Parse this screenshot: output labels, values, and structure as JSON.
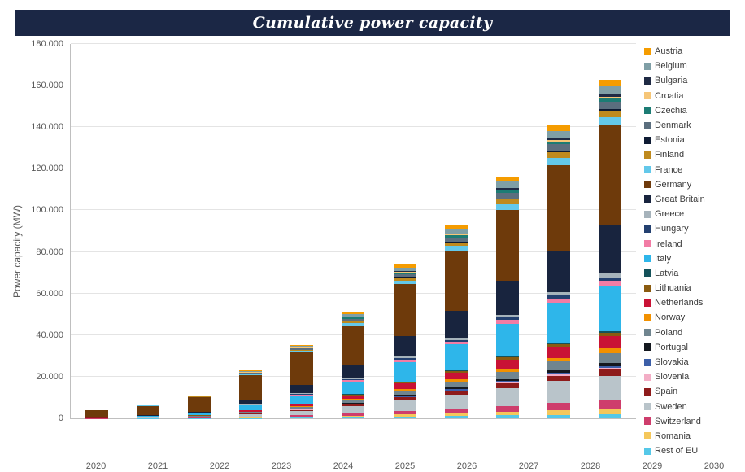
{
  "title": "Cumulative power capacity",
  "chart_data": {
    "type": "bar",
    "stacked": true,
    "title": "Cumulative power capacity",
    "xlabel": "",
    "ylabel": "Power capacity (MW)",
    "ylim": [
      0,
      180000
    ],
    "grid": true,
    "legend_position": "right",
    "categories": [
      "2020",
      "2021",
      "2022",
      "2023",
      "2024",
      "2025",
      "2026",
      "2027",
      "2028",
      "2029",
      "2030"
    ],
    "y_ticks": [
      {
        "label": "0",
        "value": 0
      },
      {
        "label": "20.000",
        "value": 20000
      },
      {
        "label": "40.000",
        "value": 40000
      },
      {
        "label": "60.000",
        "value": 60000
      },
      {
        "label": "80.000",
        "value": 80000
      },
      {
        "label": "100.000",
        "value": 100000
      },
      {
        "label": "120.000",
        "value": 120000
      },
      {
        "label": "140.000",
        "value": 140000
      },
      {
        "label": "160.000",
        "value": 160000
      },
      {
        "label": "180.000",
        "value": 180000
      }
    ],
    "totals_estimate": [
      4000,
      6500,
      11000,
      23000,
      35000,
      50000,
      73000,
      92000,
      115000,
      141000,
      163000
    ],
    "series": [
      {
        "name": "Austria",
        "color": "#F59C00",
        "values": [
          30,
          50,
          110,
          290,
          520,
          830,
          1280,
          1670,
          2140,
          2610,
          3000
        ]
      },
      {
        "name": "Belgium",
        "color": "#7F9FA6",
        "values": [
          40,
          70,
          140,
          380,
          700,
          1110,
          1700,
          2230,
          2850,
          3480,
          4000
        ]
      },
      {
        "name": "Bulgaria",
        "color": "#1F2A44",
        "values": [
          10,
          20,
          35,
          100,
          170,
          280,
          430,
          560,
          710,
          870,
          1000
        ]
      },
      {
        "name": "Croatia",
        "color": "#F6C678",
        "values": [
          10,
          20,
          35,
          100,
          170,
          280,
          430,
          560,
          710,
          870,
          1000
        ]
      },
      {
        "name": "Czechia",
        "color": "#1C7C74",
        "values": [
          15,
          25,
          50,
          140,
          260,
          420,
          640,
          840,
          1070,
          1310,
          1500
        ]
      },
      {
        "name": "Denmark",
        "color": "#5B6E7E",
        "values": [
          30,
          60,
          120,
          340,
          610,
          970,
          1490,
          1950,
          2500,
          3050,
          3500
        ]
      },
      {
        "name": "Estonia",
        "color": "#0E1B33",
        "values": [
          10,
          20,
          35,
          100,
          170,
          280,
          430,
          560,
          710,
          870,
          1000
        ]
      },
      {
        "name": "Finland",
        "color": "#BF8A1E",
        "values": [
          30,
          50,
          110,
          290,
          520,
          830,
          1280,
          1670,
          2140,
          2610,
          3000
        ]
      },
      {
        "name": "France",
        "color": "#63C8EA",
        "values": [
          40,
          70,
          140,
          380,
          700,
          1110,
          1700,
          2230,
          2850,
          3480,
          4000
        ]
      },
      {
        "name": "Germany",
        "color": "#6E3A0B",
        "values": [
          3000,
          4500,
          7000,
          12000,
          15500,
          19000,
          25000,
          29000,
          34000,
          41000,
          48000
        ]
      },
      {
        "name": "Great Britain",
        "color": "#18243E",
        "values": [
          210,
          390,
          800,
          2210,
          4000,
          6390,
          9800,
          12810,
          16400,
          20010,
          23000
        ]
      },
      {
        "name": "Greece",
        "color": "#A6B3BB",
        "values": [
          20,
          35,
          70,
          190,
          350,
          560,
          850,
          1110,
          1430,
          1740,
          2000
        ]
      },
      {
        "name": "Hungary",
        "color": "#234070",
        "values": [
          15,
          25,
          50,
          140,
          260,
          420,
          640,
          840,
          1070,
          1310,
          1500
        ]
      },
      {
        "name": "Ireland",
        "color": "#F27CA5",
        "values": [
          25,
          45,
          90,
          240,
          440,
          700,
          1070,
          1390,
          1780,
          2180,
          2500
        ]
      },
      {
        "name": "Italy",
        "color": "#2EB6EA",
        "values": [
          200,
          370,
          770,
          2110,
          3830,
          6120,
          9370,
          12250,
          15690,
          19140,
          22000
        ]
      },
      {
        "name": "Latvia",
        "color": "#14525A",
        "values": [
          10,
          15,
          30,
          80,
          140,
          220,
          340,
          450,
          570,
          700,
          800
        ]
      },
      {
        "name": "Lithuania",
        "color": "#8A5B10",
        "values": [
          15,
          25,
          50,
          140,
          260,
          420,
          640,
          840,
          1070,
          1310,
          1500
        ]
      },
      {
        "name": "Netherlands",
        "color": "#C91235",
        "values": [
          55,
          100,
          210,
          580,
          1040,
          1670,
          2560,
          3340,
          4280,
          5220,
          6000
        ]
      },
      {
        "name": "Norway",
        "color": "#F29100",
        "values": [
          20,
          35,
          70,
          190,
          350,
          560,
          850,
          1110,
          1430,
          1740,
          2000
        ]
      },
      {
        "name": "Poland",
        "color": "#70858F",
        "values": [
          45,
          85,
          175,
          480,
          870,
          1390,
          2130,
          2790,
          3570,
          4350,
          5000
        ]
      },
      {
        "name": "Portugal",
        "color": "#14181F",
        "values": [
          15,
          25,
          50,
          140,
          260,
          420,
          640,
          840,
          1070,
          1310,
          1500
        ]
      },
      {
        "name": "Slovakia",
        "color": "#3C5FA8",
        "values": [
          10,
          15,
          30,
          80,
          140,
          220,
          340,
          450,
          570,
          700,
          800
        ]
      },
      {
        "name": "Slovenia",
        "color": "#F3AEC6",
        "values": [
          5,
          10,
          25,
          65,
          120,
          195,
          300,
          390,
          500,
          610,
          700
        ]
      },
      {
        "name": "Spain",
        "color": "#8E1B1B",
        "values": [
          30,
          50,
          110,
          290,
          520,
          830,
          1280,
          1670,
          2140,
          2610,
          3000
        ]
      },
      {
        "name": "Sweden",
        "color": "#B9C4CA",
        "values": [
          110,
          200,
          420,
          1150,
          2090,
          3340,
          5110,
          6680,
          8560,
          10440,
          12000
        ]
      },
      {
        "name": "Switzerland",
        "color": "#CE3D6C",
        "values": [
          40,
          70,
          140,
          380,
          700,
          1110,
          1700,
          2230,
          2850,
          3480,
          4000
        ]
      },
      {
        "name": "Romania",
        "color": "#F5C75B",
        "values": [
          25,
          45,
          90,
          240,
          440,
          700,
          1070,
          1390,
          1780,
          2180,
          2500
        ]
      },
      {
        "name": "Rest of EU",
        "color": "#55C8E8",
        "values": [
          20,
          35,
          70,
          190,
          350,
          560,
          850,
          1110,
          1430,
          1740,
          2000
        ]
      }
    ]
  }
}
